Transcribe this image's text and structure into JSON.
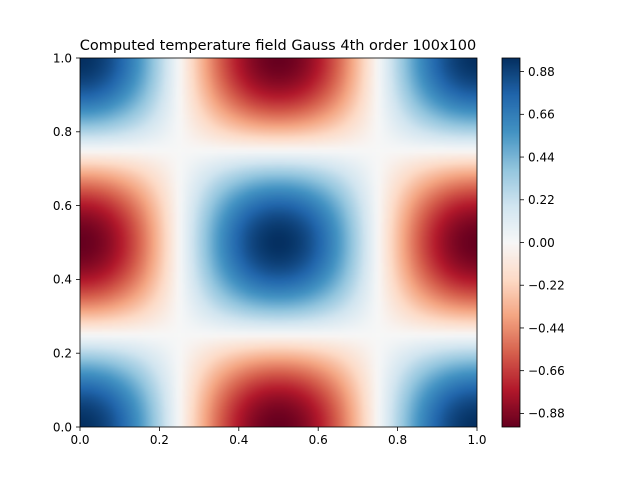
{
  "chart_data": {
    "type": "heatmap",
    "title": "Computed temperature field Gauss 4th order 100x100",
    "xlabel": "",
    "ylabel": "",
    "xlim": [
      0.0,
      1.0
    ],
    "ylim": [
      0.0,
      1.0
    ],
    "x_ticks": [
      "0.0",
      "0.2",
      "0.4",
      "0.6",
      "0.8",
      "1.0"
    ],
    "y_ticks": [
      "0.0",
      "0.2",
      "0.4",
      "0.6",
      "0.8",
      "1.0"
    ],
    "grid_resolution": [
      100,
      100
    ],
    "field": "cos(2*pi*x) * cos(2*pi*y) * 0.95",
    "colormap": "RdBu",
    "value_range": [
      -0.95,
      0.95
    ],
    "colorbar": {
      "position": "right",
      "ticks": [
        "0.88",
        "0.66",
        "0.44",
        "0.22",
        "0.00",
        "−0.22",
        "−0.44",
        "−0.66",
        "−0.88"
      ],
      "tick_values": [
        0.88,
        0.66,
        0.44,
        0.22,
        0.0,
        -0.22,
        -0.44,
        -0.66,
        -0.88
      ]
    },
    "grid": false
  }
}
